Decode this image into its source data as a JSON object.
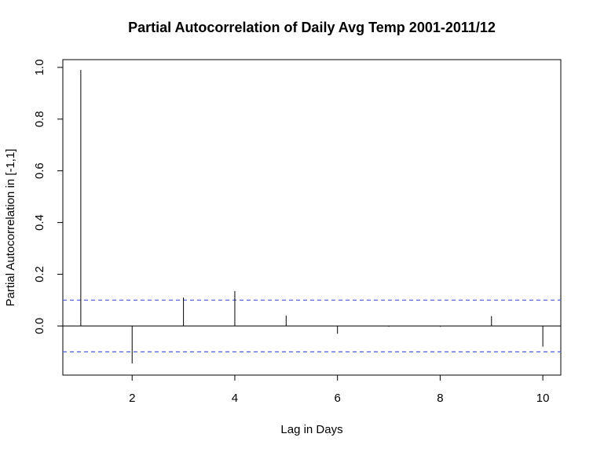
{
  "chart_data": {
    "type": "bar",
    "title": "Partial Autocorrelation of Daily Avg Temp 2001-2011/12",
    "xlabel": "Lag in Days",
    "ylabel": "Partial Autocorrelation in [-1,1]",
    "xlim": [
      0.65,
      10.35
    ],
    "ylim": [
      -0.19,
      1.03
    ],
    "x": [
      1,
      2,
      3,
      4,
      5,
      6,
      7,
      8,
      9,
      10
    ],
    "values": [
      0.99,
      -0.145,
      0.11,
      0.135,
      0.04,
      -0.03,
      -0.003,
      -0.003,
      0.038,
      -0.08
    ],
    "confidence_bounds": [
      0.1,
      -0.1
    ],
    "x_ticks": [
      2,
      4,
      6,
      8,
      10
    ],
    "x_tick_labels": [
      "2",
      "4",
      "6",
      "8",
      "10"
    ],
    "y_ticks": [
      0.0,
      0.2,
      0.4,
      0.6,
      0.8,
      1.0
    ],
    "y_tick_labels": [
      "0.0",
      "0.2",
      "0.4",
      "0.6",
      "0.8",
      "1.0"
    ],
    "colors": {
      "bars": "#000000",
      "bounds": "#4a5fe0",
      "zero_line": "#000000"
    },
    "grid": false,
    "legend": "none"
  }
}
